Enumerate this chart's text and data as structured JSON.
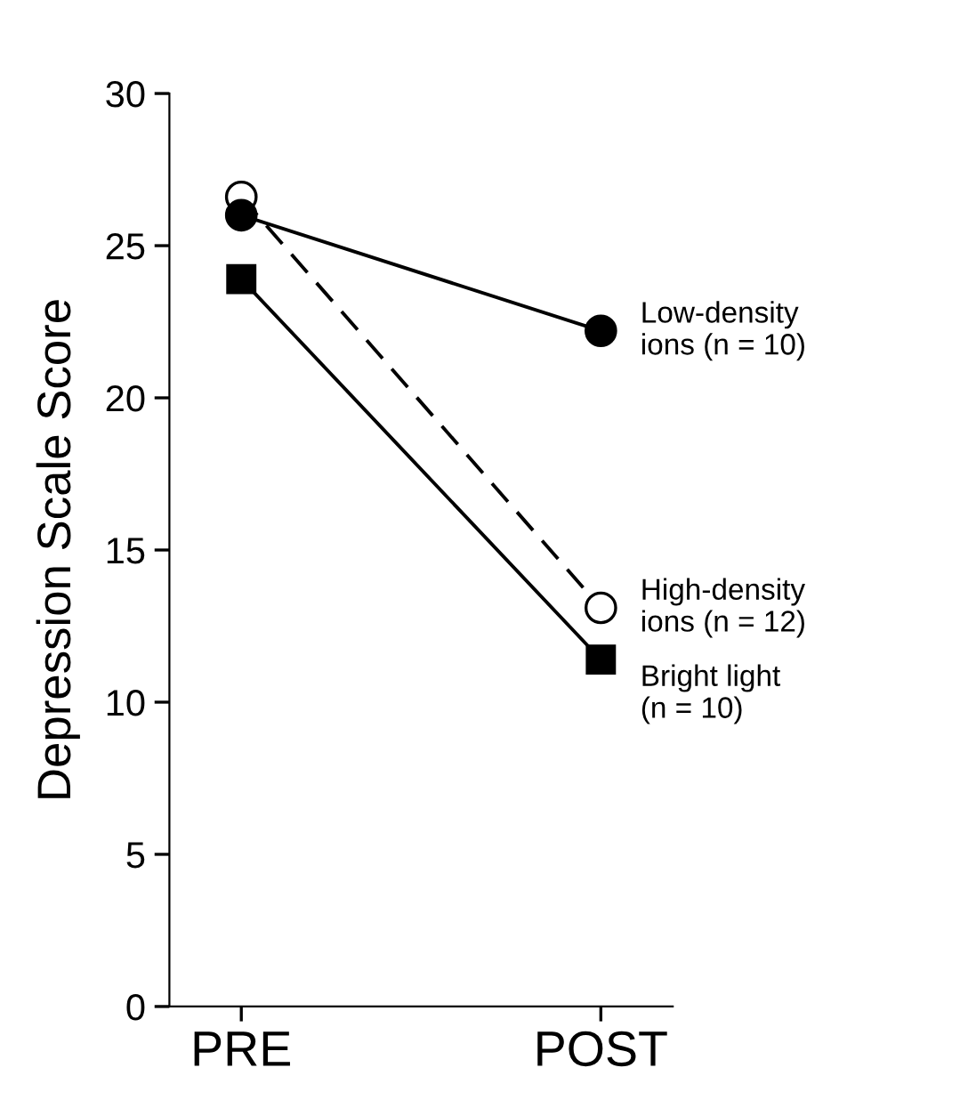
{
  "chart_data": {
    "type": "line",
    "ylabel": "Depression Scale Score",
    "categories": [
      "PRE",
      "POST"
    ],
    "series": [
      {
        "name": "Low-density\nions (n = 10)",
        "color": "#000000",
        "marker": "circle",
        "line_style": "solid",
        "values": [
          26.0,
          22.2
        ]
      },
      {
        "name": "High-density\nions (n = 12)",
        "color": "#ffffff",
        "marker": "circle",
        "line_style": "dashed",
        "values": [
          26.6,
          13.1
        ]
      },
      {
        "name": "Bright light\n(n = 10)",
        "color": "#000000",
        "marker": "square",
        "line_style": "solid",
        "values": [
          23.9,
          11.4
        ]
      }
    ],
    "ylim": [
      0,
      30
    ],
    "yticks": [
      0,
      5,
      10,
      15,
      20,
      25,
      30
    ],
    "grid": false,
    "legend": false
  }
}
